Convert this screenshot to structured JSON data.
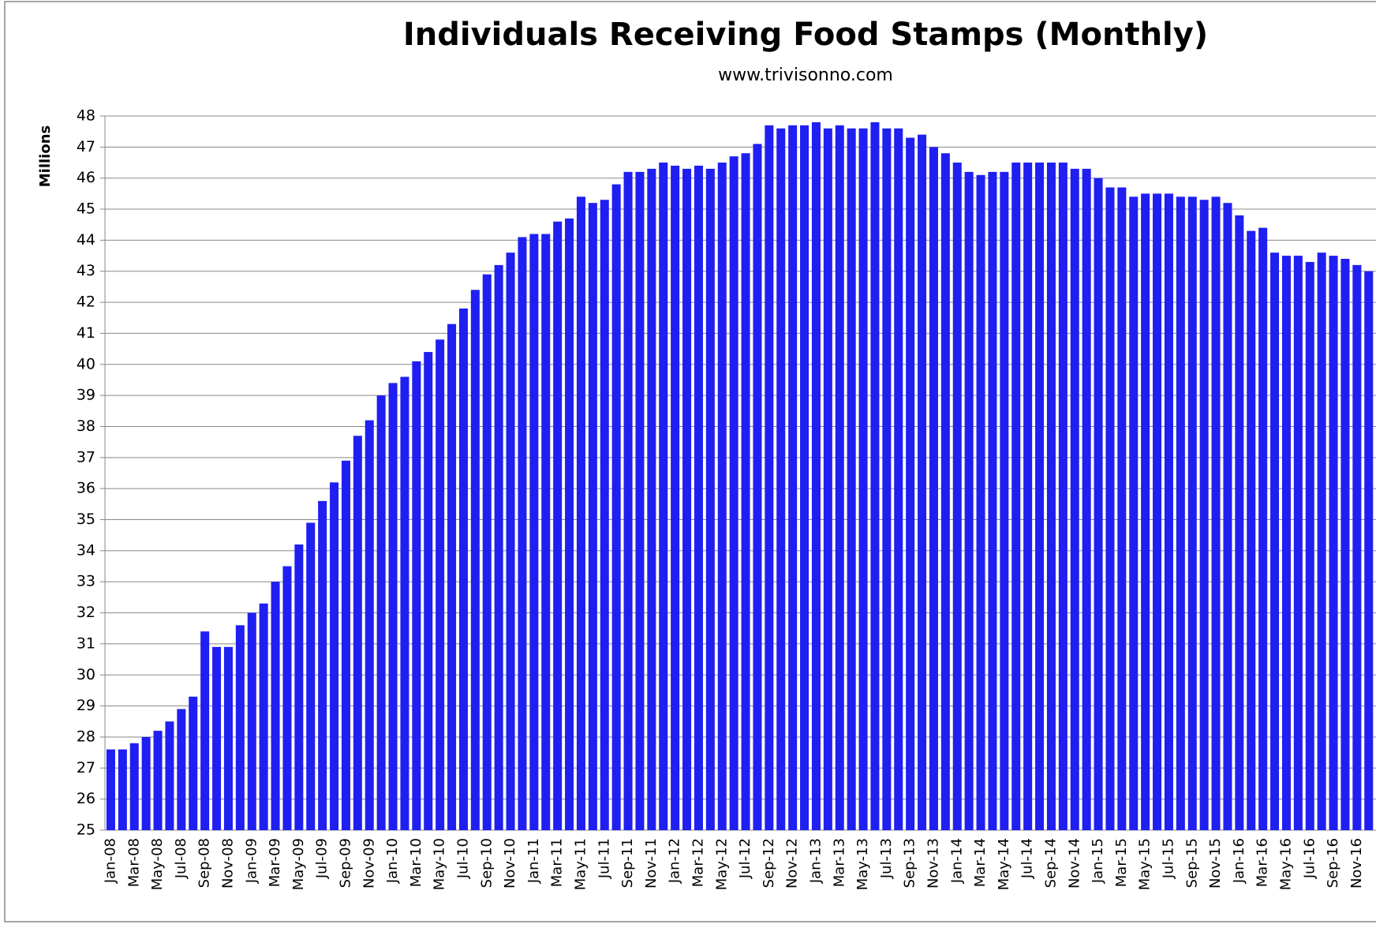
{
  "chart_data": {
    "type": "bar",
    "title": "Individuals Receiving Food Stamps (Monthly)",
    "subtitle": "www.trivisonno.com",
    "y_label": "Millions",
    "categories": [
      "Jan-08",
      null,
      "Mar-08",
      null,
      "May-08",
      null,
      "Jul-08",
      null,
      "Sep-08",
      null,
      "Nov-08",
      null,
      "Jan-09",
      null,
      "Mar-09",
      null,
      "May-09",
      null,
      "Jul-09",
      null,
      "Sep-09",
      null,
      "Nov-09",
      null,
      "Jan-10",
      null,
      "Mar-10",
      null,
      "May-10",
      null,
      "Jul-10",
      null,
      "Sep-10",
      null,
      "Nov-10",
      null,
      "Jan-11",
      null,
      "Mar-11",
      null,
      "May-11",
      null,
      "Jul-11",
      null,
      "Sep-11",
      null,
      "Nov-11",
      null,
      "Jan-12",
      null,
      "Mar-12",
      null,
      "May-12",
      null,
      "Jul-12",
      null,
      "Sep-12",
      null,
      "Nov-12",
      null,
      "Jan-13",
      null,
      "Mar-13",
      null,
      "May-13",
      null,
      "Jul-13",
      null,
      "Sep-13",
      null,
      "Nov-13",
      null,
      "Jan-14",
      null,
      "Mar-14",
      null,
      "May-14",
      null,
      "Jul-14",
      null,
      "Sep-14",
      null,
      "Nov-14",
      null,
      "Jan-15",
      null,
      "Mar-15",
      null,
      "May-15",
      null,
      "Jul-15",
      null,
      "Sep-15",
      null,
      "Nov-15",
      null,
      "Jan-16",
      null,
      "Mar-16",
      null,
      "May-16",
      null,
      "Jul-16",
      null,
      "Sep-16",
      null,
      "Nov-16",
      null
    ],
    "values": [
      27.6,
      27.6,
      27.8,
      28.0,
      28.2,
      28.5,
      28.9,
      29.3,
      31.4,
      30.9,
      30.9,
      31.6,
      32.0,
      32.3,
      33.0,
      33.5,
      34.2,
      34.9,
      35.6,
      36.2,
      36.9,
      37.7,
      38.2,
      39.0,
      39.4,
      39.6,
      40.1,
      40.4,
      40.8,
      41.3,
      41.8,
      42.4,
      42.9,
      43.2,
      43.6,
      44.1,
      44.2,
      44.2,
      44.6,
      44.7,
      45.4,
      45.2,
      45.3,
      45.8,
      46.2,
      46.2,
      46.3,
      46.5,
      46.4,
      46.3,
      46.4,
      46.3,
      46.5,
      46.7,
      46.8,
      47.1,
      47.7,
      47.6,
      47.7,
      47.7,
      47.8,
      47.6,
      47.7,
      47.6,
      47.6,
      47.8,
      47.6,
      47.6,
      47.3,
      47.4,
      47.0,
      46.8,
      46.5,
      46.2,
      46.1,
      46.2,
      46.2,
      46.5,
      46.5,
      46.5,
      46.5,
      46.5,
      46.3,
      46.3,
      46.0,
      45.7,
      45.7,
      45.4,
      45.5,
      45.5,
      45.5,
      45.4,
      45.4,
      45.3,
      45.4,
      45.2,
      44.8,
      44.3,
      44.4,
      43.6,
      43.5,
      43.5,
      43.3,
      43.6,
      43.5,
      43.4,
      43.2,
      43.0
    ],
    "color": "#1f1ff2",
    "ylim": [
      25,
      48
    ],
    "yticks": [
      25,
      26,
      27,
      28,
      29,
      30,
      31,
      32,
      33,
      34,
      35,
      36,
      37,
      38,
      39,
      40,
      41,
      42,
      43,
      44,
      45,
      46,
      47,
      48
    ],
    "grid": true
  }
}
